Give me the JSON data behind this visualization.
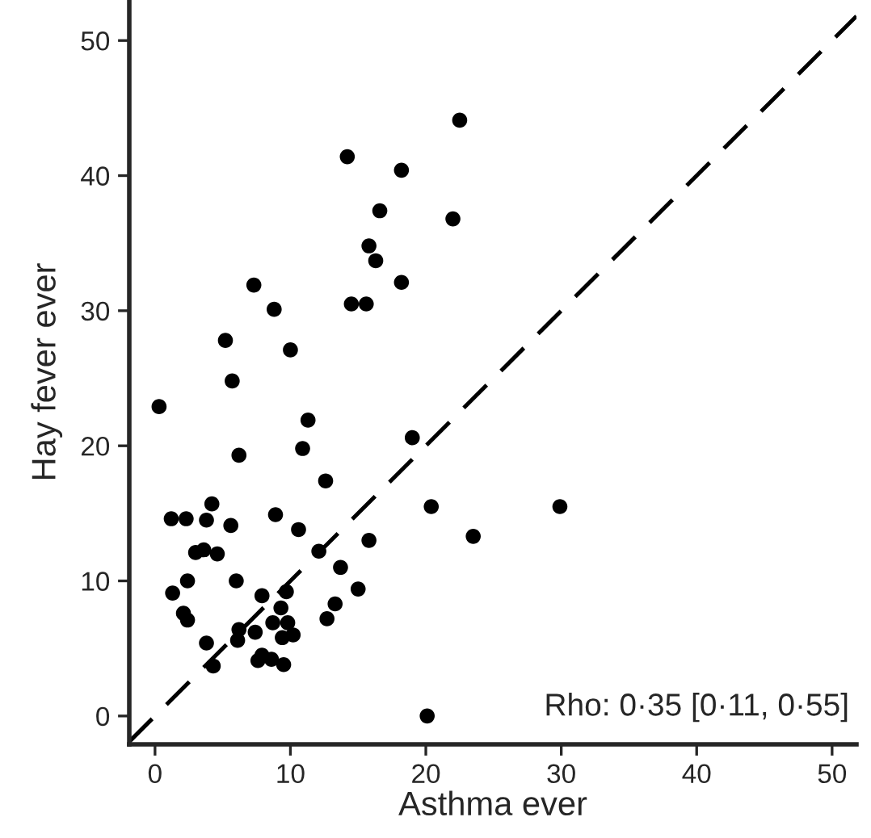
{
  "chart_data": {
    "type": "scatter",
    "xlabel": "Asthma ever",
    "ylabel": "Hay fever ever",
    "xlim": [
      -1.9,
      51.8
    ],
    "ylim": [
      -2.1,
      53
    ],
    "xticks": [
      0,
      10,
      20,
      30,
      40,
      50
    ],
    "yticks": [
      0,
      10,
      20,
      30,
      40,
      50
    ],
    "grid": false,
    "annotations": [
      "Rho: 0·35 [0·11, 0·55]"
    ],
    "series": [
      {
        "color": "#000000",
        "marker": "circle",
        "x": [
          22.5,
          22.0,
          14.2,
          18.2,
          16.6,
          15.8,
          16.3,
          18.2,
          14.5,
          15.6,
          7.3,
          8.8,
          5.2,
          10.0,
          0.3,
          5.7,
          11.3,
          6.2,
          10.9,
          19.0,
          12.6,
          4.2,
          1.2,
          2.3,
          3.8,
          5.6,
          8.9,
          10.6,
          20.4,
          29.9,
          23.5,
          3.0,
          3.6,
          4.6,
          12.1,
          15.8,
          1.3,
          2.4,
          6.0,
          13.7,
          7.9,
          9.7,
          15.0,
          2.1,
          2.4,
          9.3,
          13.3,
          12.7,
          8.7,
          9.8,
          6.2,
          6.1,
          7.4,
          9.4,
          10.2,
          3.8,
          4.3,
          7.6,
          7.9,
          8.6,
          9.5,
          20.1
        ],
        "values": [
          44.1,
          36.8,
          41.4,
          40.4,
          37.4,
          34.8,
          33.7,
          32.1,
          30.5,
          30.5,
          31.9,
          30.1,
          27.8,
          27.1,
          22.9,
          24.8,
          21.9,
          19.3,
          19.8,
          20.6,
          17.4,
          15.7,
          14.6,
          14.6,
          14.5,
          14.1,
          14.9,
          13.8,
          15.5,
          15.5,
          13.3,
          12.1,
          12.3,
          12.0,
          12.2,
          13.0,
          9.1,
          10.0,
          10.0,
          11.0,
          8.9,
          9.2,
          9.4,
          7.6,
          7.1,
          8.0,
          8.3,
          7.2,
          6.9,
          6.9,
          6.4,
          5.6,
          6.2,
          5.8,
          6.0,
          5.4,
          3.7,
          4.1,
          4.5,
          4.2,
          3.8,
          0.0
        ]
      },
      {
        "type": "line",
        "color": "#000000",
        "line_style": "dashed",
        "marker": "none",
        "x": [
          -1.9,
          51.8
        ],
        "values": [
          -1.9,
          51.8
        ]
      }
    ]
  }
}
